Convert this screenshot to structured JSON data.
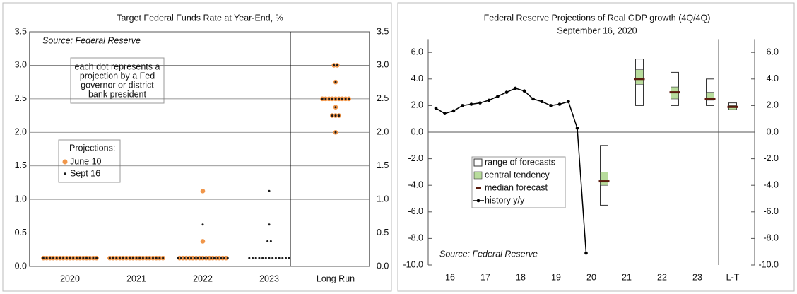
{
  "chart_data": [
    {
      "type": "dot",
      "title": "Target Federal Funds Rate at Year-End, %",
      "source": "Source: Federal Reserve",
      "annotation": [
        "each dot represents a",
        "projection by a Fed",
        "governor or district",
        "bank president"
      ],
      "legend_title": "Projections:",
      "categories": [
        "2020",
        "2021",
        "2022",
        "2023",
        "Long Run"
      ],
      "series": [
        {
          "name": "June 10",
          "color": "#f0964a",
          "values": [
            [
              0.125,
              0.125,
              0.125,
              0.125,
              0.125,
              0.125,
              0.125,
              0.125,
              0.125,
              0.125,
              0.125,
              0.125,
              0.125,
              0.125,
              0.125,
              0.125,
              0.125
            ],
            [
              0.125,
              0.125,
              0.125,
              0.125,
              0.125,
              0.125,
              0.125,
              0.125,
              0.125,
              0.125,
              0.125,
              0.125,
              0.125,
              0.125,
              0.125,
              0.125,
              0.125
            ],
            [
              0.125,
              0.125,
              0.125,
              0.125,
              0.125,
              0.125,
              0.125,
              0.125,
              0.125,
              0.125,
              0.125,
              0.125,
              0.125,
              0.125,
              0.125,
              0.375,
              1.125
            ],
            null,
            [
              2.0,
              2.25,
              2.25,
              2.25,
              2.375,
              2.5,
              2.5,
              2.5,
              2.5,
              2.5,
              2.5,
              2.5,
              2.5,
              2.5,
              2.75,
              3.0,
              3.0
            ]
          ]
        },
        {
          "name": "Sept 16",
          "color": "#1a1a1a",
          "values": [
            [
              0.125,
              0.125,
              0.125,
              0.125,
              0.125,
              0.125,
              0.125,
              0.125,
              0.125,
              0.125,
              0.125,
              0.125,
              0.125,
              0.125,
              0.125,
              0.125,
              0.125
            ],
            [
              0.125,
              0.125,
              0.125,
              0.125,
              0.125,
              0.125,
              0.125,
              0.125,
              0.125,
              0.125,
              0.125,
              0.125,
              0.125,
              0.125,
              0.125,
              0.125,
              0.125
            ],
            [
              0.125,
              0.125,
              0.125,
              0.125,
              0.125,
              0.125,
              0.125,
              0.125,
              0.125,
              0.125,
              0.125,
              0.125,
              0.125,
              0.125,
              0.125,
              0.125,
              0.625
            ],
            [
              0.125,
              0.125,
              0.125,
              0.125,
              0.125,
              0.125,
              0.125,
              0.125,
              0.125,
              0.125,
              0.125,
              0.125,
              0.125,
              0.375,
              0.375,
              0.625,
              1.125
            ],
            [
              2.0,
              2.25,
              2.25,
              2.25,
              2.375,
              2.5,
              2.5,
              2.5,
              2.5,
              2.5,
              2.5,
              2.5,
              2.5,
              2.5,
              2.75,
              3.0,
              3.0
            ]
          ]
        }
      ],
      "ylim": [
        0,
        3.5
      ],
      "yticks": [
        {
          "value": 0,
          "label": "0.0"
        },
        {
          "value": 0.5,
          "label": "0.5"
        },
        {
          "value": 1,
          "label": "1.0"
        },
        {
          "value": 1.5,
          "label": "1.5"
        },
        {
          "value": 2,
          "label": "2.0"
        },
        {
          "value": 2.5,
          "label": "2.5"
        },
        {
          "value": 3,
          "label": "3.0"
        },
        {
          "value": 3.5,
          "label": "3.5"
        }
      ],
      "grid": true
    },
    {
      "type": "range",
      "title": "Federal Reserve Projections of Real GDP growth (4Q/4Q)",
      "subtitle": "September 16, 2020",
      "source": "Source: Federal Reserve",
      "categories": [
        "16",
        "17",
        "18",
        "19",
        "20",
        "21",
        "22",
        "23",
        "L-T"
      ],
      "ylim": [
        -10,
        7
      ],
      "yticks": [
        {
          "value": -10,
          "label": "-10.0"
        },
        {
          "value": -8,
          "label": "-8.0"
        },
        {
          "value": -6,
          "label": "-6.0"
        },
        {
          "value": -4,
          "label": "-4.0"
        },
        {
          "value": -2,
          "label": "-2.0"
        },
        {
          "value": 0,
          "label": "0.0"
        },
        {
          "value": 2,
          "label": "2.0"
        },
        {
          "value": 4,
          "label": "4.0"
        },
        {
          "value": 6,
          "label": "6.0"
        }
      ],
      "history": {
        "name": "history y/y",
        "color": "#000000",
        "values": [
          1.8,
          1.4,
          1.6,
          2.0,
          2.1,
          2.2,
          2.4,
          2.7,
          3.0,
          3.3,
          3.1,
          2.5,
          2.3,
          2.0,
          2.1,
          2.3,
          0.3,
          -9.1
        ]
      },
      "range": {
        "name": "range of forecasts",
        "low": [
          null,
          null,
          null,
          null,
          -5.5,
          2.0,
          2.0,
          2.0,
          1.7
        ],
        "high": [
          null,
          null,
          null,
          null,
          -1.0,
          5.5,
          4.5,
          4.0,
          2.2
        ]
      },
      "central": {
        "name": "central tendency",
        "color": "#b8dc9c",
        "low": [
          null,
          null,
          null,
          null,
          -4.0,
          3.6,
          2.5,
          2.4,
          1.7
        ],
        "high": [
          null,
          null,
          null,
          null,
          -3.0,
          4.7,
          3.4,
          3.0,
          2.0
        ]
      },
      "median": {
        "name": "median forecast",
        "color": "#5a1a0c",
        "values": [
          null,
          null,
          null,
          null,
          -3.7,
          4.0,
          3.0,
          2.5,
          1.9
        ]
      }
    }
  ]
}
